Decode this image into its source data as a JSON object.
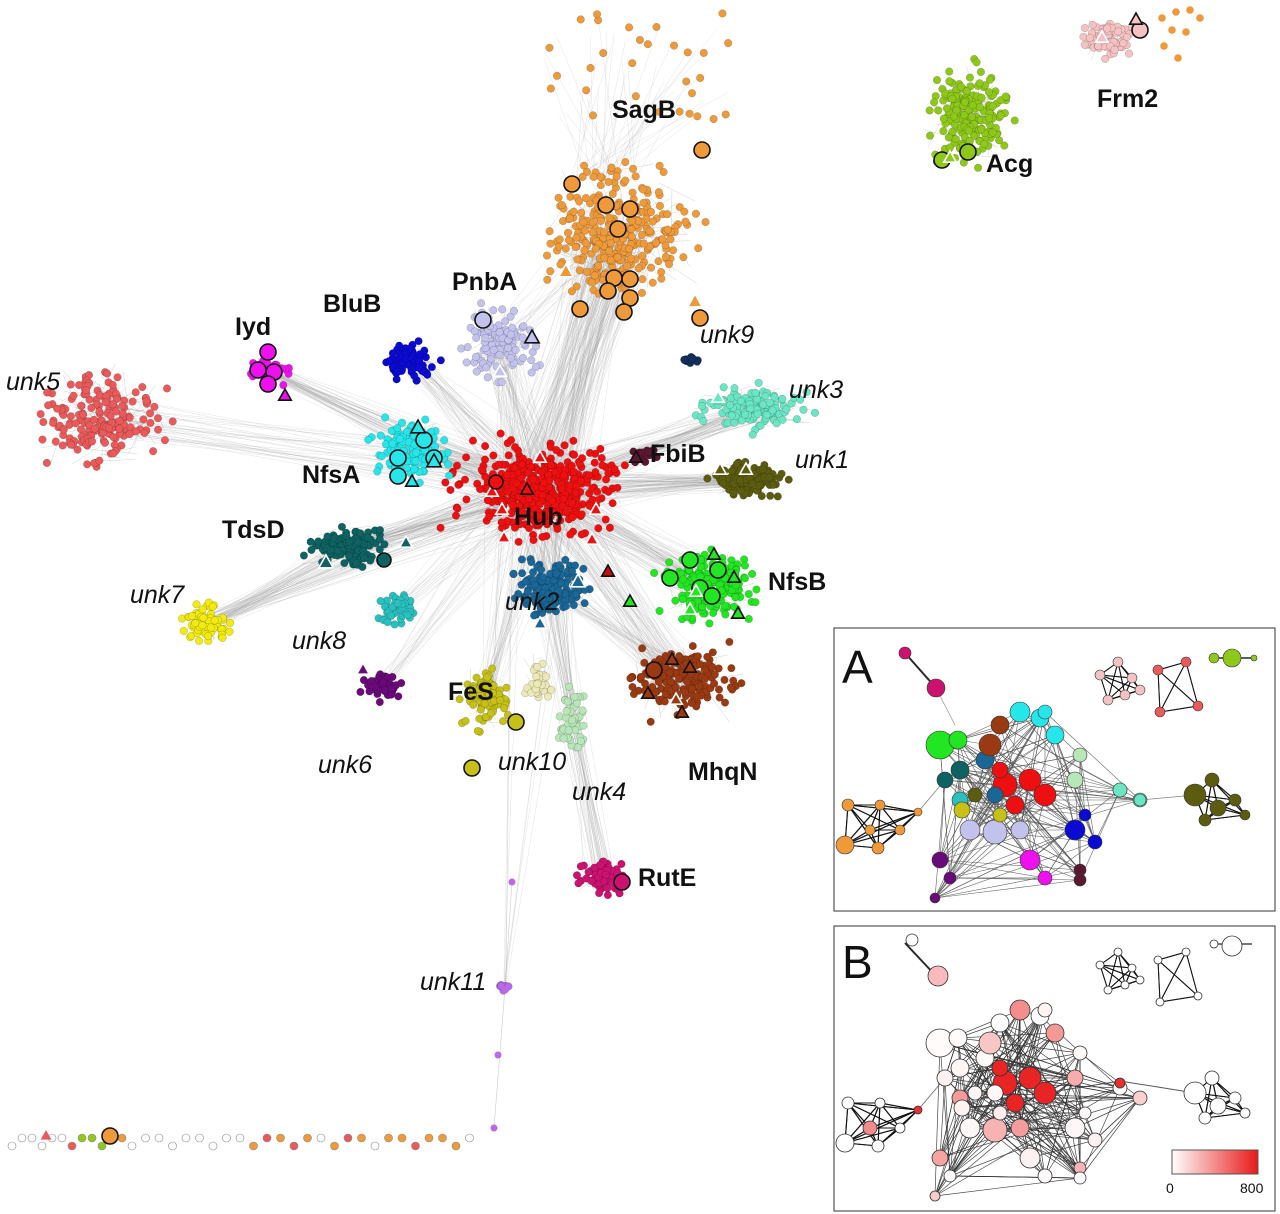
{
  "clusters": [
    {
      "id": "sagb",
      "label": "SagB",
      "style": "bold",
      "color": "#ee9a3a"
    },
    {
      "id": "pnba",
      "label": "PnbA",
      "style": "bold",
      "color": "#c2c2ec"
    },
    {
      "id": "blub",
      "label": "BluB",
      "style": "bold",
      "color": "#0a0ad2"
    },
    {
      "id": "iyd",
      "label": "Iyd",
      "style": "bold",
      "color": "#ee10ee"
    },
    {
      "id": "nfsa",
      "label": "NfsA",
      "style": "bold",
      "color": "#26e6ea"
    },
    {
      "id": "tdsd",
      "label": "TdsD",
      "style": "bold",
      "color": "#0e6262"
    },
    {
      "id": "hub",
      "label": "Hub",
      "style": "bold",
      "color": "#ee1010"
    },
    {
      "id": "fbib",
      "label": "FbiB",
      "style": "bold",
      "color": "#5a1830"
    },
    {
      "id": "nfsb",
      "label": "NfsB",
      "style": "bold",
      "color": "#22e622"
    },
    {
      "id": "mhqn",
      "label": "MhqN",
      "style": "bold",
      "color": "#9a3a12"
    },
    {
      "id": "fes",
      "label": "FeS",
      "style": "bold",
      "color": "#c6c018"
    },
    {
      "id": "rute",
      "label": "RutE",
      "style": "bold",
      "color": "#cc1270"
    },
    {
      "id": "acg",
      "label": "Acg",
      "style": "bold",
      "color": "#8ec81a"
    },
    {
      "id": "frm2",
      "label": "Frm2",
      "style": "bold",
      "color": "#f4c2c2"
    },
    {
      "id": "unk1",
      "label": "unk1",
      "style": "italic",
      "color": "#5c5c10"
    },
    {
      "id": "unk2",
      "label": "unk2",
      "style": "italic",
      "color": "#1a6696"
    },
    {
      "id": "unk3",
      "label": "unk3",
      "style": "italic",
      "color": "#6ae6c4"
    },
    {
      "id": "unk4",
      "label": "unk4",
      "style": "italic",
      "color": "#b8e6b8"
    },
    {
      "id": "unk5",
      "label": "unk5",
      "style": "italic",
      "color": "#ea5a5a"
    },
    {
      "id": "unk6",
      "label": "unk6",
      "style": "italic",
      "color": "#6a0a7a"
    },
    {
      "id": "unk7",
      "label": "unk7",
      "style": "italic",
      "color": "#f2ea10"
    },
    {
      "id": "unk8",
      "label": "unk8",
      "style": "italic",
      "color": "#2ac0c0"
    },
    {
      "id": "unk9",
      "label": "unk9",
      "style": "italic",
      "color": "#12305e"
    },
    {
      "id": "unk10",
      "label": "unk10",
      "style": "italic",
      "color": "#ece8b8"
    },
    {
      "id": "unk11",
      "label": "unk11",
      "style": "italic",
      "color": "#b86ae6"
    }
  ],
  "inset_a": {
    "letter": "A"
  },
  "inset_b": {
    "letter": "B",
    "scale": {
      "min_label": "0",
      "max_label": "800",
      "color_low": "#ffffff",
      "color_high": "#e81818"
    }
  },
  "colors": {
    "edge": "#9a9a9a",
    "inset_edge": "#111111",
    "marker_stroke": "#111111"
  }
}
